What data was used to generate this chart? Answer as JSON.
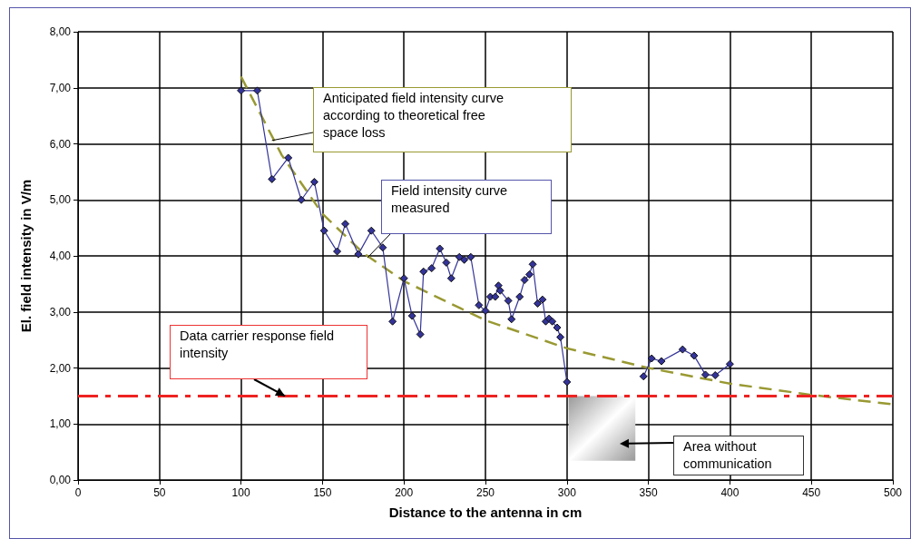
{
  "chart_data": {
    "type": "line",
    "xlabel": "Distance to the antenna in cm",
    "ylabel": "El. field intensity in V/m",
    "xlim": [
      0,
      500
    ],
    "xticks": [
      0,
      50,
      100,
      150,
      200,
      250,
      300,
      350,
      400,
      450,
      500
    ],
    "ylim": [
      0,
      8
    ],
    "yticks": [
      {
        "value": 0,
        "label": "0,00"
      },
      {
        "value": 1,
        "label": "1,00"
      },
      {
        "value": 2,
        "label": "2,00"
      },
      {
        "value": 3,
        "label": "3,00"
      },
      {
        "value": 4,
        "label": "4,00"
      },
      {
        "value": 5,
        "label": "5,00"
      },
      {
        "value": 6,
        "label": "6,00"
      },
      {
        "value": 7,
        "label": "7,00"
      },
      {
        "value": 8,
        "label": "8,00"
      }
    ],
    "grid": true,
    "series": [
      {
        "color": "#999933",
        "marker": "none",
        "line_style": "dashed",
        "x": [
          100,
          125,
          150,
          175,
          200,
          250,
          300,
          350,
          400,
          450,
          500
        ],
        "values": [
          7.2,
          5.8,
          4.75,
          4.05,
          3.55,
          2.85,
          2.35,
          2.0,
          1.72,
          1.52,
          1.35
        ]
      },
      {
        "color": "#333399",
        "marker": "diamond",
        "line_style": "solid",
        "x": [
          100,
          110,
          119,
          129,
          137,
          145,
          151,
          159,
          164,
          172,
          180,
          187,
          193,
          200,
          205,
          210,
          212,
          217,
          222,
          226,
          229,
          234,
          237,
          241,
          246,
          250,
          253,
          256,
          258,
          259,
          264,
          266,
          271,
          274,
          277,
          279,
          282,
          285,
          287,
          289,
          291,
          294,
          296,
          300,
          320,
          347,
          352,
          358,
          371,
          378,
          385,
          391,
          400
        ],
        "values": [
          6.95,
          6.95,
          5.37,
          5.75,
          5.0,
          5.32,
          4.45,
          4.08,
          4.57,
          4.03,
          4.45,
          4.15,
          2.83,
          3.6,
          2.93,
          2.6,
          3.72,
          3.78,
          4.13,
          3.88,
          3.6,
          3.98,
          3.93,
          3.98,
          3.12,
          3.02,
          3.27,
          3.27,
          3.47,
          3.38,
          3.2,
          2.87,
          3.27,
          3.57,
          3.67,
          3.85,
          3.15,
          3.22,
          2.83,
          2.88,
          2.83,
          2.72,
          2.55,
          1.75,
          null,
          1.85,
          2.17,
          2.12,
          2.33,
          2.22,
          1.88,
          1.87,
          2.07
        ]
      }
    ],
    "ref_lines": [
      {
        "axis": "y",
        "value": 1.5,
        "color": "#ee2222",
        "line_style": "dashdot",
        "label": null
      }
    ],
    "bands": [
      {
        "axis": "x",
        "from": 301,
        "to": 342,
        "color": "#999999",
        "label": null
      }
    ],
    "annotations": [
      {
        "text": "Anticipated field intensity curve according to theoretical free space loss",
        "x": 119,
        "y": 6.06
      },
      "Field intensity curve measured",
      {
        "text": "Data carrier response field intensity",
        "x": 127,
        "y": 1.5
      },
      "Area without communication"
    ]
  }
}
